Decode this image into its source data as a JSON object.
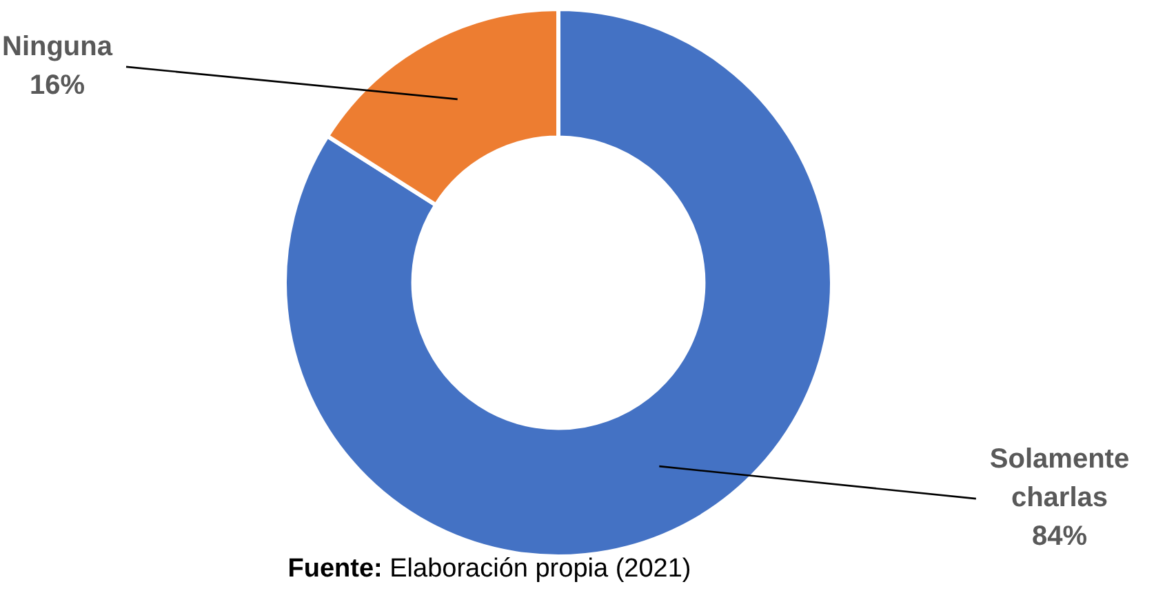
{
  "chart_data": {
    "type": "donut",
    "categories": [
      "Solamente charlas",
      "Ninguna"
    ],
    "values": [
      84,
      16
    ],
    "colors": [
      "#4472c4",
      "#ed7d31"
    ],
    "value_labels": [
      "84%",
      "16%"
    ],
    "annotations": [
      "Fuente: Elaboración propia (2021)"
    ]
  }
}
